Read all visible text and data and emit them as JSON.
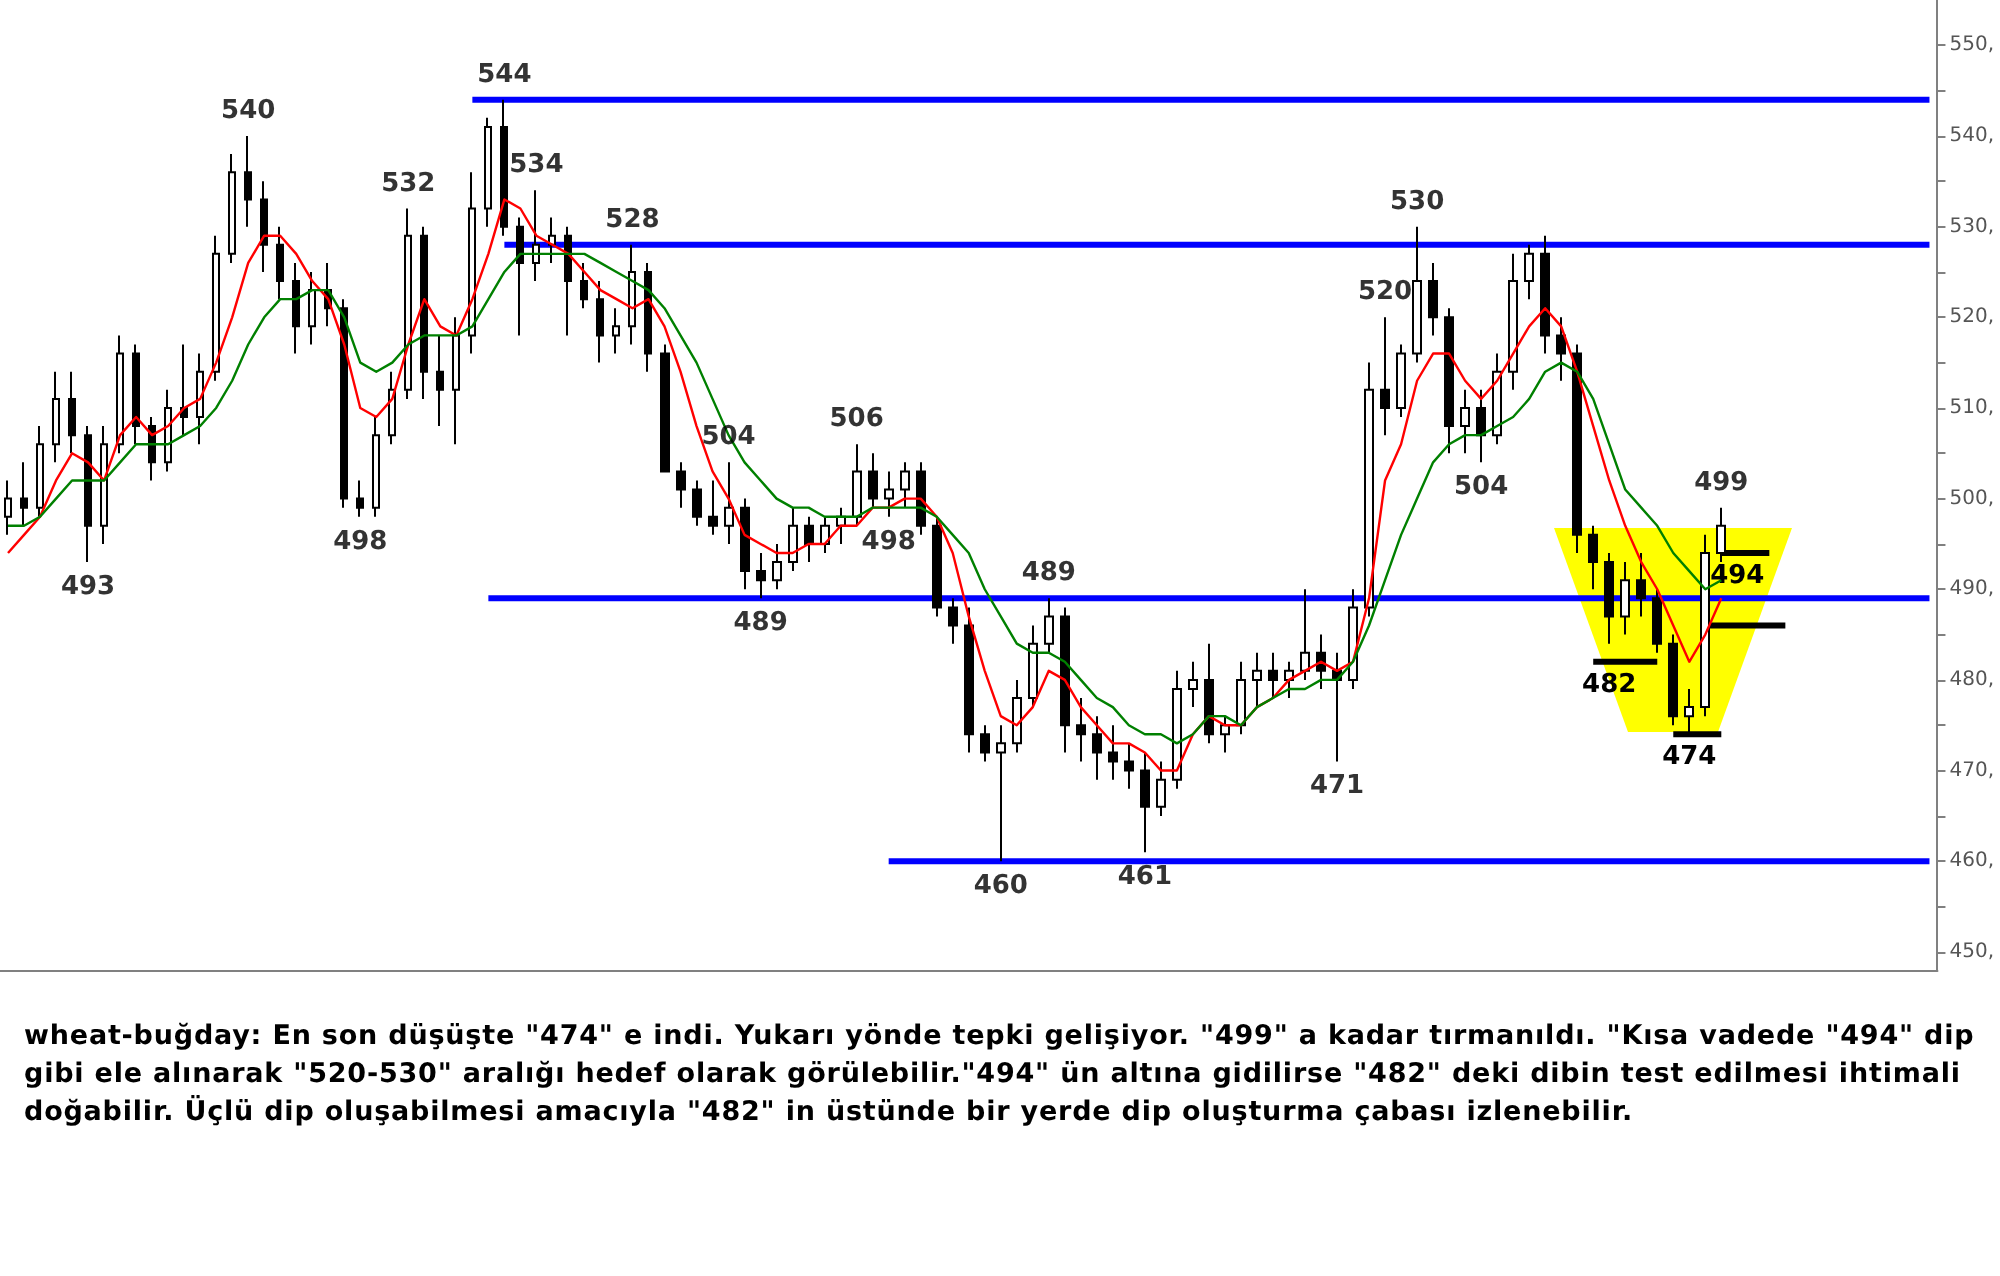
{
  "chart_data": {
    "type": "candlestick",
    "color": "#000000",
    "categories": [
      null,
      null,
      null,
      null,
      null,
      null,
      null,
      null,
      null,
      null,
      null,
      null,
      null,
      null,
      null,
      null,
      null,
      null,
      null,
      null,
      null,
      null,
      null,
      null,
      null,
      null,
      null,
      null,
      null,
      null,
      null,
      null,
      null,
      null,
      null,
      null,
      null,
      null,
      null,
      null,
      null,
      null,
      null,
      null,
      null,
      null,
      null,
      null,
      null,
      null,
      null,
      null,
      null,
      null,
      null,
      null,
      null,
      null,
      null,
      null,
      null,
      null,
      null,
      null,
      null,
      null,
      null,
      null,
      null,
      null,
      null,
      null,
      null,
      null,
      null,
      null,
      null,
      null,
      null,
      null,
      null,
      null,
      null,
      null,
      null,
      null,
      null,
      null,
      null,
      null,
      null,
      null,
      null,
      null,
      null,
      null,
      null,
      null,
      null,
      null,
      null,
      null,
      null,
      null,
      null,
      null,
      null,
      null,
      null,
      null,
      null,
      null,
      null,
      null,
      null,
      null,
      null,
      null,
      null,
      null,
      null
    ],
    "ohlc": [
      [
        498,
        502,
        496,
        500
      ],
      [
        500,
        504,
        497,
        499
      ],
      [
        499,
        508,
        498,
        506
      ],
      [
        506,
        514,
        504,
        511
      ],
      [
        511,
        514,
        505,
        507
      ],
      [
        507,
        508,
        493,
        497
      ],
      [
        497,
        508,
        495,
        506
      ],
      [
        506,
        518,
        505,
        516
      ],
      [
        516,
        517,
        506,
        508
      ],
      [
        508,
        509,
        502,
        504
      ],
      [
        504,
        512,
        503,
        510
      ],
      [
        510,
        517,
        507,
        509
      ],
      [
        509,
        516,
        506,
        514
      ],
      [
        514,
        529,
        513,
        527
      ],
      [
        527,
        538,
        526,
        536
      ],
      [
        536,
        540,
        530,
        533
      ],
      [
        533,
        535,
        525,
        528
      ],
      [
        528,
        530,
        522,
        524
      ],
      [
        524,
        526,
        516,
        519
      ],
      [
        519,
        525,
        517,
        523
      ],
      [
        523,
        526,
        519,
        521
      ],
      [
        521,
        522,
        499,
        500
      ],
      [
        500,
        502,
        498,
        499
      ],
      [
        499,
        509,
        498,
        507
      ],
      [
        507,
        514,
        506,
        512
      ],
      [
        512,
        532,
        511,
        529
      ],
      [
        529,
        530,
        511,
        514
      ],
      [
        514,
        518,
        508,
        512
      ],
      [
        512,
        520,
        506,
        518
      ],
      [
        518,
        536,
        516,
        532
      ],
      [
        532,
        542,
        530,
        541
      ],
      [
        541,
        544,
        529,
        530
      ],
      [
        530,
        531,
        518,
        526
      ],
      [
        526,
        534,
        524,
        528
      ],
      [
        528,
        531,
        526,
        529
      ],
      [
        529,
        530,
        518,
        524
      ],
      [
        524,
        526,
        521,
        522
      ],
      [
        522,
        524,
        515,
        518
      ],
      [
        518,
        521,
        516,
        519
      ],
      [
        519,
        528,
        517,
        525
      ],
      [
        525,
        526,
        514,
        516
      ],
      [
        516,
        517,
        503,
        503
      ],
      [
        503,
        504,
        499,
        501
      ],
      [
        501,
        502,
        497,
        498
      ],
      [
        498,
        502,
        496,
        497
      ],
      [
        497,
        504,
        495,
        499
      ],
      [
        499,
        500,
        490,
        492
      ],
      [
        492,
        494,
        489,
        491
      ],
      [
        491,
        495,
        490,
        493
      ],
      [
        493,
        499,
        492,
        497
      ],
      [
        497,
        498,
        493,
        495
      ],
      [
        495,
        498,
        494,
        497
      ],
      [
        497,
        499,
        495,
        498
      ],
      [
        498,
        506,
        497,
        503
      ],
      [
        503,
        505,
        499,
        500
      ],
      [
        500,
        503,
        498,
        501
      ],
      [
        501,
        504,
        499,
        503
      ],
      [
        503,
        504,
        496,
        497
      ],
      [
        497,
        498,
        487,
        488
      ],
      [
        488,
        489,
        484,
        486
      ],
      [
        486,
        488,
        472,
        474
      ],
      [
        474,
        475,
        471,
        472
      ],
      [
        472,
        475,
        460,
        473
      ],
      [
        473,
        480,
        472,
        478
      ],
      [
        478,
        486,
        477,
        484
      ],
      [
        484,
        489,
        483,
        487
      ],
      [
        487,
        488,
        472,
        475
      ],
      [
        475,
        478,
        471,
        474
      ],
      [
        474,
        476,
        469,
        472
      ],
      [
        472,
        475,
        469,
        471
      ],
      [
        471,
        473,
        468,
        470
      ],
      [
        470,
        472,
        461,
        466
      ],
      [
        466,
        471,
        465,
        469
      ],
      [
        469,
        481,
        468,
        479
      ],
      [
        479,
        482,
        477,
        480
      ],
      [
        480,
        484,
        473,
        474
      ],
      [
        474,
        476,
        472,
        475
      ],
      [
        475,
        482,
        474,
        480
      ],
      [
        480,
        483,
        477,
        481
      ],
      [
        481,
        483,
        478,
        480
      ],
      [
        480,
        482,
        478,
        481
      ],
      [
        481,
        490,
        480,
        483
      ],
      [
        483,
        485,
        479,
        481
      ],
      [
        481,
        483,
        471,
        480
      ],
      [
        480,
        490,
        479,
        488
      ],
      [
        488,
        515,
        487,
        512
      ],
      [
        512,
        520,
        507,
        510
      ],
      [
        510,
        517,
        509,
        516
      ],
      [
        516,
        530,
        515,
        524
      ],
      [
        524,
        526,
        518,
        520
      ],
      [
        520,
        521,
        505,
        508
      ],
      [
        508,
        512,
        505,
        510
      ],
      [
        510,
        512,
        504,
        507
      ],
      [
        507,
        516,
        506,
        514
      ],
      [
        514,
        527,
        512,
        524
      ],
      [
        524,
        528,
        522,
        527
      ],
      [
        527,
        529,
        516,
        518
      ],
      [
        518,
        520,
        513,
        516
      ],
      [
        516,
        517,
        494,
        496
      ],
      [
        496,
        497,
        490,
        493
      ],
      [
        493,
        494,
        484,
        487
      ],
      [
        487,
        493,
        485,
        491
      ],
      [
        491,
        494,
        487,
        489
      ],
      [
        489,
        490,
        483,
        484
      ],
      [
        484,
        485,
        475,
        476
      ],
      [
        476,
        479,
        474,
        477
      ],
      [
        477,
        496,
        476,
        494
      ],
      [
        494,
        499,
        493,
        497
      ],
      null,
      null,
      null,
      null,
      null,
      null,
      null,
      null,
      null,
      null,
      null,
      null,
      null
    ],
    "value_labels": [
      null,
      null,
      null,
      null,
      null,
      "493",
      null,
      null,
      null,
      null,
      null,
      null,
      null,
      null,
      null,
      "540",
      null,
      null,
      null,
      null,
      null,
      null,
      "498",
      null,
      null,
      "532",
      null,
      null,
      null,
      null,
      null,
      "544",
      null,
      "534",
      null,
      null,
      null,
      null,
      null,
      "528",
      null,
      null,
      null,
      null,
      null,
      "504",
      null,
      "489",
      null,
      null,
      null,
      null,
      null,
      "506",
      null,
      "498",
      null,
      null,
      null,
      null,
      null,
      null,
      "460",
      null,
      null,
      "489",
      null,
      null,
      null,
      null,
      null,
      "461",
      null,
      null,
      null,
      null,
      null,
      null,
      null,
      null,
      null,
      null,
      null,
      "471",
      null,
      null,
      "520",
      null,
      "530",
      null,
      null,
      null,
      "504",
      null,
      null,
      null,
      null,
      null,
      null,
      null,
      null,
      null,
      null,
      null,
      null,
      null,
      null,
      "499",
      null,
      null,
      null,
      null,
      null,
      null,
      null,
      null,
      null,
      null,
      null,
      null,
      null
    ],
    "series": [
      {
        "type": "line",
        "color": "#ff0000",
        "values": [
          494,
          496,
          498,
          502,
          505,
          504,
          502,
          507,
          509,
          507,
          508,
          510,
          511,
          515,
          520,
          526,
          529,
          529,
          527,
          524,
          522,
          517,
          510,
          509,
          511,
          517,
          522,
          519,
          518,
          522,
          527,
          533,
          532,
          529,
          528,
          527,
          525,
          523,
          522,
          521,
          522,
          519,
          514,
          508,
          503,
          500,
          496,
          495,
          494,
          494,
          495,
          495,
          497,
          497,
          499,
          499,
          500,
          500,
          498,
          494,
          487,
          481,
          476,
          475,
          477,
          481,
          480,
          477,
          475,
          473,
          473,
          472,
          470,
          470,
          474,
          476,
          475,
          475,
          477,
          478,
          480,
          481,
          482,
          481,
          482,
          489,
          502,
          506,
          513,
          516,
          516,
          513,
          511,
          513,
          516,
          519,
          521,
          519,
          514,
          508,
          502,
          497,
          493,
          490,
          486,
          482,
          485,
          489,
          null,
          null,
          null,
          null,
          null,
          null,
          null,
          null,
          null,
          null,
          null,
          null,
          null
        ]
      },
      {
        "type": "line",
        "color": "#008000",
        "values": [
          497,
          497,
          498,
          500,
          502,
          502,
          502,
          504,
          506,
          506,
          506,
          507,
          508,
          510,
          513,
          517,
          520,
          522,
          522,
          523,
          523,
          520,
          515,
          514,
          515,
          517,
          518,
          518,
          518,
          519,
          522,
          525,
          527,
          527,
          527,
          527,
          527,
          526,
          525,
          524,
          523,
          521,
          518,
          515,
          511,
          507,
          504,
          502,
          500,
          499,
          499,
          498,
          498,
          498,
          499,
          499,
          499,
          499,
          498,
          496,
          494,
          490,
          487,
          484,
          483,
          483,
          482,
          480,
          478,
          477,
          475,
          474,
          474,
          473,
          474,
          476,
          476,
          475,
          477,
          478,
          479,
          479,
          480,
          480,
          482,
          486,
          491,
          496,
          500,
          504,
          506,
          507,
          507,
          508,
          509,
          511,
          514,
          515,
          514,
          511,
          506,
          501,
          499,
          497,
          494,
          492,
          490,
          491,
          null,
          null,
          null,
          null,
          null,
          null,
          null,
          null,
          null,
          null,
          null,
          null,
          null
        ]
      },
      {
        "type": "line",
        "color": "#0000ff",
        "values": [
          null,
          null,
          null,
          null,
          null,
          null,
          null,
          null,
          null,
          null,
          null,
          null,
          null,
          null,
          null,
          null,
          null,
          null,
          null,
          null,
          null,
          null,
          null,
          null,
          null,
          null,
          null,
          null,
          null,
          544,
          544,
          544,
          544,
          544,
          544,
          544,
          544,
          544,
          544,
          544,
          544,
          544,
          544,
          544,
          544,
          544,
          544,
          544,
          544,
          544,
          544,
          544,
          544,
          544,
          544,
          544,
          544,
          544,
          544,
          544,
          544,
          544,
          544,
          544,
          544,
          544,
          544,
          544,
          544,
          544,
          544,
          544,
          544,
          544,
          544,
          544,
          544,
          544,
          544,
          544,
          544,
          544,
          544,
          544,
          544,
          544,
          544,
          544,
          544,
          544,
          544,
          544,
          544,
          544,
          544,
          544,
          544,
          544,
          544,
          544,
          544,
          544,
          544,
          544,
          544,
          544,
          544,
          544,
          544,
          544,
          544,
          544,
          544,
          544,
          544,
          544,
          544,
          544,
          544,
          544,
          544
        ]
      },
      {
        "type": "line",
        "color": "#0000ff",
        "values": [
          null,
          null,
          null,
          null,
          null,
          null,
          null,
          null,
          null,
          null,
          null,
          null,
          null,
          null,
          null,
          null,
          null,
          null,
          null,
          null,
          null,
          null,
          null,
          null,
          null,
          null,
          null,
          null,
          null,
          null,
          null,
          528,
          528,
          528,
          528,
          528,
          528,
          528,
          528,
          528,
          528,
          528,
          528,
          528,
          528,
          528,
          528,
          528,
          528,
          528,
          528,
          528,
          528,
          528,
          528,
          528,
          528,
          528,
          528,
          528,
          528,
          528,
          528,
          528,
          528,
          528,
          528,
          528,
          528,
          528,
          528,
          528,
          528,
          528,
          528,
          528,
          528,
          528,
          528,
          528,
          528,
          528,
          528,
          528,
          528,
          528,
          528,
          528,
          528,
          528,
          528,
          528,
          528,
          528,
          528,
          528,
          528,
          528,
          528,
          528,
          528,
          528,
          528,
          528,
          528,
          528,
          528,
          528,
          528,
          528,
          528,
          528,
          528,
          528,
          528,
          528,
          528,
          528,
          528,
          528,
          528
        ]
      },
      {
        "type": "line",
        "color": "#0000ff",
        "values": [
          null,
          null,
          null,
          null,
          null,
          null,
          null,
          null,
          null,
          null,
          null,
          null,
          null,
          null,
          null,
          null,
          null,
          null,
          null,
          null,
          null,
          null,
          null,
          null,
          null,
          null,
          null,
          null,
          null,
          null,
          489,
          489,
          489,
          489,
          489,
          489,
          489,
          489,
          489,
          489,
          489,
          489,
          489,
          489,
          489,
          489,
          489,
          489,
          489,
          489,
          489,
          489,
          489,
          489,
          489,
          489,
          489,
          489,
          489,
          489,
          489,
          489,
          489,
          489,
          489,
          489,
          489,
          489,
          489,
          489,
          489,
          489,
          489,
          489,
          489,
          489,
          489,
          489,
          489,
          489,
          489,
          489,
          489,
          489,
          489,
          489,
          489,
          489,
          489,
          489,
          489,
          489,
          489,
          489,
          489,
          489,
          489,
          489,
          489,
          489,
          489,
          489,
          489,
          489,
          489,
          489,
          489,
          489,
          489,
          489,
          489,
          489,
          489,
          489,
          489,
          489,
          489,
          489,
          489,
          489,
          489
        ]
      },
      {
        "type": "line",
        "color": "#0000ff",
        "values": [
          null,
          null,
          null,
          null,
          null,
          null,
          null,
          null,
          null,
          null,
          null,
          null,
          null,
          null,
          null,
          null,
          null,
          null,
          null,
          null,
          null,
          null,
          null,
          null,
          null,
          null,
          null,
          null,
          null,
          null,
          null,
          null,
          null,
          null,
          null,
          null,
          null,
          null,
          null,
          null,
          null,
          null,
          null,
          null,
          null,
          null,
          null,
          null,
          null,
          null,
          null,
          null,
          null,
          null,
          null,
          460,
          460,
          460,
          460,
          460,
          460,
          460,
          460,
          460,
          460,
          460,
          460,
          460,
          460,
          460,
          460,
          460,
          460,
          460,
          460,
          460,
          460,
          460,
          460,
          460,
          460,
          460,
          460,
          460,
          460,
          460,
          460,
          460,
          460,
          460,
          460,
          460,
          460,
          460,
          460,
          460,
          460,
          460,
          460,
          460,
          460,
          460,
          460,
          460,
          460,
          460,
          460,
          460,
          460,
          460,
          460,
          460,
          460,
          460,
          460,
          460,
          460,
          460,
          460,
          460,
          460
        ]
      },
      {
        "type": "line",
        "color": "#000000",
        "values": [
          null,
          null,
          null,
          null,
          null,
          null,
          null,
          null,
          null,
          null,
          null,
          null,
          null,
          null,
          null,
          null,
          null,
          null,
          null,
          null,
          null,
          null,
          null,
          null,
          null,
          null,
          null,
          null,
          null,
          null,
          null,
          null,
          null,
          null,
          null,
          null,
          null,
          null,
          null,
          null,
          null,
          null,
          null,
          null,
          null,
          null,
          null,
          null,
          null,
          null,
          null,
          null,
          null,
          null,
          null,
          null,
          null,
          null,
          null,
          null,
          null,
          null,
          null,
          null,
          null,
          null,
          null,
          null,
          null,
          null,
          null,
          null,
          null,
          null,
          null,
          null,
          null,
          null,
          null,
          null,
          null,
          null,
          null,
          null,
          null,
          null,
          null,
          null,
          null,
          null,
          null,
          null,
          null,
          null,
          null,
          null,
          null,
          null,
          null,
          482,
          482,
          482,
          482,
          482,
          null,
          null,
          null,
          null,
          null,
          null,
          null,
          null,
          null,
          null,
          null,
          null,
          null,
          null,
          null,
          null,
          null
        ],
        "value_labels": [
          null,
          null,
          null,
          null,
          null,
          null,
          null,
          null,
          null,
          null,
          null,
          null,
          null,
          null,
          null,
          null,
          null,
          null,
          null,
          null,
          null,
          null,
          null,
          null,
          null,
          null,
          null,
          null,
          null,
          null,
          null,
          null,
          null,
          null,
          null,
          null,
          null,
          null,
          null,
          null,
          null,
          null,
          null,
          null,
          null,
          null,
          null,
          null,
          null,
          null,
          null,
          null,
          null,
          null,
          null,
          null,
          null,
          null,
          null,
          null,
          null,
          null,
          null,
          null,
          null,
          null,
          null,
          null,
          null,
          null,
          null,
          null,
          null,
          null,
          null,
          null,
          null,
          null,
          null,
          null,
          null,
          null,
          null,
          null,
          null,
          null,
          null,
          null,
          null,
          null,
          null,
          null,
          null,
          null,
          null,
          null,
          null,
          null,
          null,
          null,
          "482",
          null,
          null,
          null,
          null,
          null,
          null,
          null,
          null,
          null,
          null,
          null,
          null,
          null,
          null,
          null,
          null,
          null,
          null,
          null,
          null
        ]
      },
      {
        "type": "line",
        "color": "#000000",
        "values": [
          null,
          null,
          null,
          null,
          null,
          null,
          null,
          null,
          null,
          null,
          null,
          null,
          null,
          null,
          null,
          null,
          null,
          null,
          null,
          null,
          null,
          null,
          null,
          null,
          null,
          null,
          null,
          null,
          null,
          null,
          null,
          null,
          null,
          null,
          null,
          null,
          null,
          null,
          null,
          null,
          null,
          null,
          null,
          null,
          null,
          null,
          null,
          null,
          null,
          null,
          null,
          null,
          null,
          null,
          null,
          null,
          null,
          null,
          null,
          null,
          null,
          null,
          null,
          null,
          null,
          null,
          null,
          null,
          null,
          null,
          null,
          null,
          null,
          null,
          null,
          null,
          null,
          null,
          null,
          null,
          null,
          null,
          null,
          null,
          null,
          null,
          null,
          null,
          null,
          null,
          null,
          null,
          null,
          null,
          null,
          null,
          null,
          null,
          null,
          null,
          null,
          null,
          null,
          null,
          474,
          474,
          474,
          474,
          null,
          null,
          null,
          null,
          null,
          null,
          null,
          null,
          null,
          null,
          null,
          null,
          null
        ],
        "value_labels": [
          null,
          null,
          null,
          null,
          null,
          null,
          null,
          null,
          null,
          null,
          null,
          null,
          null,
          null,
          null,
          null,
          null,
          null,
          null,
          null,
          null,
          null,
          null,
          null,
          null,
          null,
          null,
          null,
          null,
          null,
          null,
          null,
          null,
          null,
          null,
          null,
          null,
          null,
          null,
          null,
          null,
          null,
          null,
          null,
          null,
          null,
          null,
          null,
          null,
          null,
          null,
          null,
          null,
          null,
          null,
          null,
          null,
          null,
          null,
          null,
          null,
          null,
          null,
          null,
          null,
          null,
          null,
          null,
          null,
          null,
          null,
          null,
          null,
          null,
          null,
          null,
          null,
          null,
          null,
          null,
          null,
          null,
          null,
          null,
          null,
          null,
          null,
          null,
          null,
          null,
          null,
          null,
          null,
          null,
          null,
          null,
          null,
          null,
          null,
          null,
          null,
          null,
          null,
          null,
          null,
          "474",
          null,
          null,
          null,
          null,
          null,
          null,
          null,
          null,
          null,
          null,
          null,
          null,
          null,
          null,
          null
        ]
      },
      {
        "type": "line",
        "color": "#000000",
        "values": [
          null,
          null,
          null,
          null,
          null,
          null,
          null,
          null,
          null,
          null,
          null,
          null,
          null,
          null,
          null,
          null,
          null,
          null,
          null,
          null,
          null,
          null,
          null,
          null,
          null,
          null,
          null,
          null,
          null,
          null,
          null,
          null,
          null,
          null,
          null,
          null,
          null,
          null,
          null,
          null,
          null,
          null,
          null,
          null,
          null,
          null,
          null,
          null,
          null,
          null,
          null,
          null,
          null,
          null,
          null,
          null,
          null,
          null,
          null,
          null,
          null,
          null,
          null,
          null,
          null,
          null,
          null,
          null,
          null,
          null,
          null,
          null,
          null,
          null,
          null,
          null,
          null,
          null,
          null,
          null,
          null,
          null,
          null,
          null,
          null,
          null,
          null,
          null,
          null,
          null,
          null,
          null,
          null,
          null,
          null,
          null,
          null,
          null,
          null,
          null,
          null,
          null,
          null,
          null,
          null,
          null,
          null,
          494,
          494,
          494,
          494,
          null,
          null,
          null,
          null,
          null,
          null,
          null,
          null,
          null,
          null
        ],
        "value_labels": [
          null,
          null,
          null,
          null,
          null,
          null,
          null,
          null,
          null,
          null,
          null,
          null,
          null,
          null,
          null,
          null,
          null,
          null,
          null,
          null,
          null,
          null,
          null,
          null,
          null,
          null,
          null,
          null,
          null,
          null,
          null,
          null,
          null,
          null,
          null,
          null,
          null,
          null,
          null,
          null,
          null,
          null,
          null,
          null,
          null,
          null,
          null,
          null,
          null,
          null,
          null,
          null,
          null,
          null,
          null,
          null,
          null,
          null,
          null,
          null,
          null,
          null,
          null,
          null,
          null,
          null,
          null,
          null,
          null,
          null,
          null,
          null,
          null,
          null,
          null,
          null,
          null,
          null,
          null,
          null,
          null,
          null,
          null,
          null,
          null,
          null,
          null,
          null,
          null,
          null,
          null,
          null,
          null,
          null,
          null,
          null,
          null,
          null,
          null,
          null,
          null,
          null,
          null,
          null,
          null,
          null,
          null,
          null,
          "494",
          null,
          null,
          null,
          null,
          null,
          null,
          null,
          null,
          null,
          null,
          null,
          null
        ]
      },
      {
        "type": "line",
        "color": "#000000",
        "values": [
          null,
          null,
          null,
          null,
          null,
          null,
          null,
          null,
          null,
          null,
          null,
          null,
          null,
          null,
          null,
          null,
          null,
          null,
          null,
          null,
          null,
          null,
          null,
          null,
          null,
          null,
          null,
          null,
          null,
          null,
          null,
          null,
          null,
          null,
          null,
          null,
          null,
          null,
          null,
          null,
          null,
          null,
          null,
          null,
          null,
          null,
          null,
          null,
          null,
          null,
          null,
          null,
          null,
          null,
          null,
          null,
          null,
          null,
          null,
          null,
          null,
          null,
          null,
          null,
          null,
          null,
          null,
          null,
          null,
          null,
          null,
          null,
          null,
          null,
          null,
          null,
          null,
          null,
          null,
          null,
          null,
          null,
          null,
          null,
          null,
          null,
          null,
          null,
          null,
          null,
          null,
          null,
          null,
          null,
          null,
          null,
          null,
          null,
          null,
          null,
          null,
          null,
          null,
          null,
          null,
          null,
          486,
          486,
          486,
          486,
          486,
          486,
          null,
          null,
          null,
          null,
          null,
          null,
          null,
          null,
          null
        ]
      }
    ],
    "ylim": [
      448,
      555
    ],
    "yticks": [
      {
        "value": 450,
        "label": "450,"
      },
      {
        "value": 455,
        "label": null
      },
      {
        "value": 460,
        "label": "460,"
      },
      {
        "value": 465,
        "label": null
      },
      {
        "value": 470,
        "label": "470,"
      },
      {
        "value": 475,
        "label": null
      },
      {
        "value": 480,
        "label": "480,"
      },
      {
        "value": 485,
        "label": null
      },
      {
        "value": 490,
        "label": "490,"
      },
      {
        "value": 495,
        "label": null
      },
      {
        "value": 500,
        "label": "500,"
      },
      {
        "value": 505,
        "label": null
      },
      {
        "value": 510,
        "label": "510,"
      },
      {
        "value": 515,
        "label": null
      },
      {
        "value": 520,
        "label": "520,"
      },
      {
        "value": 525,
        "label": null
      },
      {
        "value": 530,
        "label": "530,"
      },
      {
        "value": 535,
        "label": null
      },
      {
        "value": 540,
        "label": "540,"
      },
      {
        "value": 545,
        "label": null
      },
      {
        "value": 550,
        "label": "550,"
      }
    ],
    "tick_labels": "y",
    "annotations": [
      "wheat-buğday: En son düşüşte \"474\" e indi. Yukarı yönde tepki gelişiyor. \"499\" a kadar tırmanıldı. \"Kısa vadede \"494\" dip gibi ele alınarak \"520-530\" aralığı hedef olarak görülebilir.\"494\" ün altına gidilirse \"482\" deki dibin test edilmesi ihtimali doğabilir. Üçlü dip oluşabilmesi amacıyla \"482\" in üstünde bir yerde dip oluşturma çabası izlenebilir."
    ]
  }
}
